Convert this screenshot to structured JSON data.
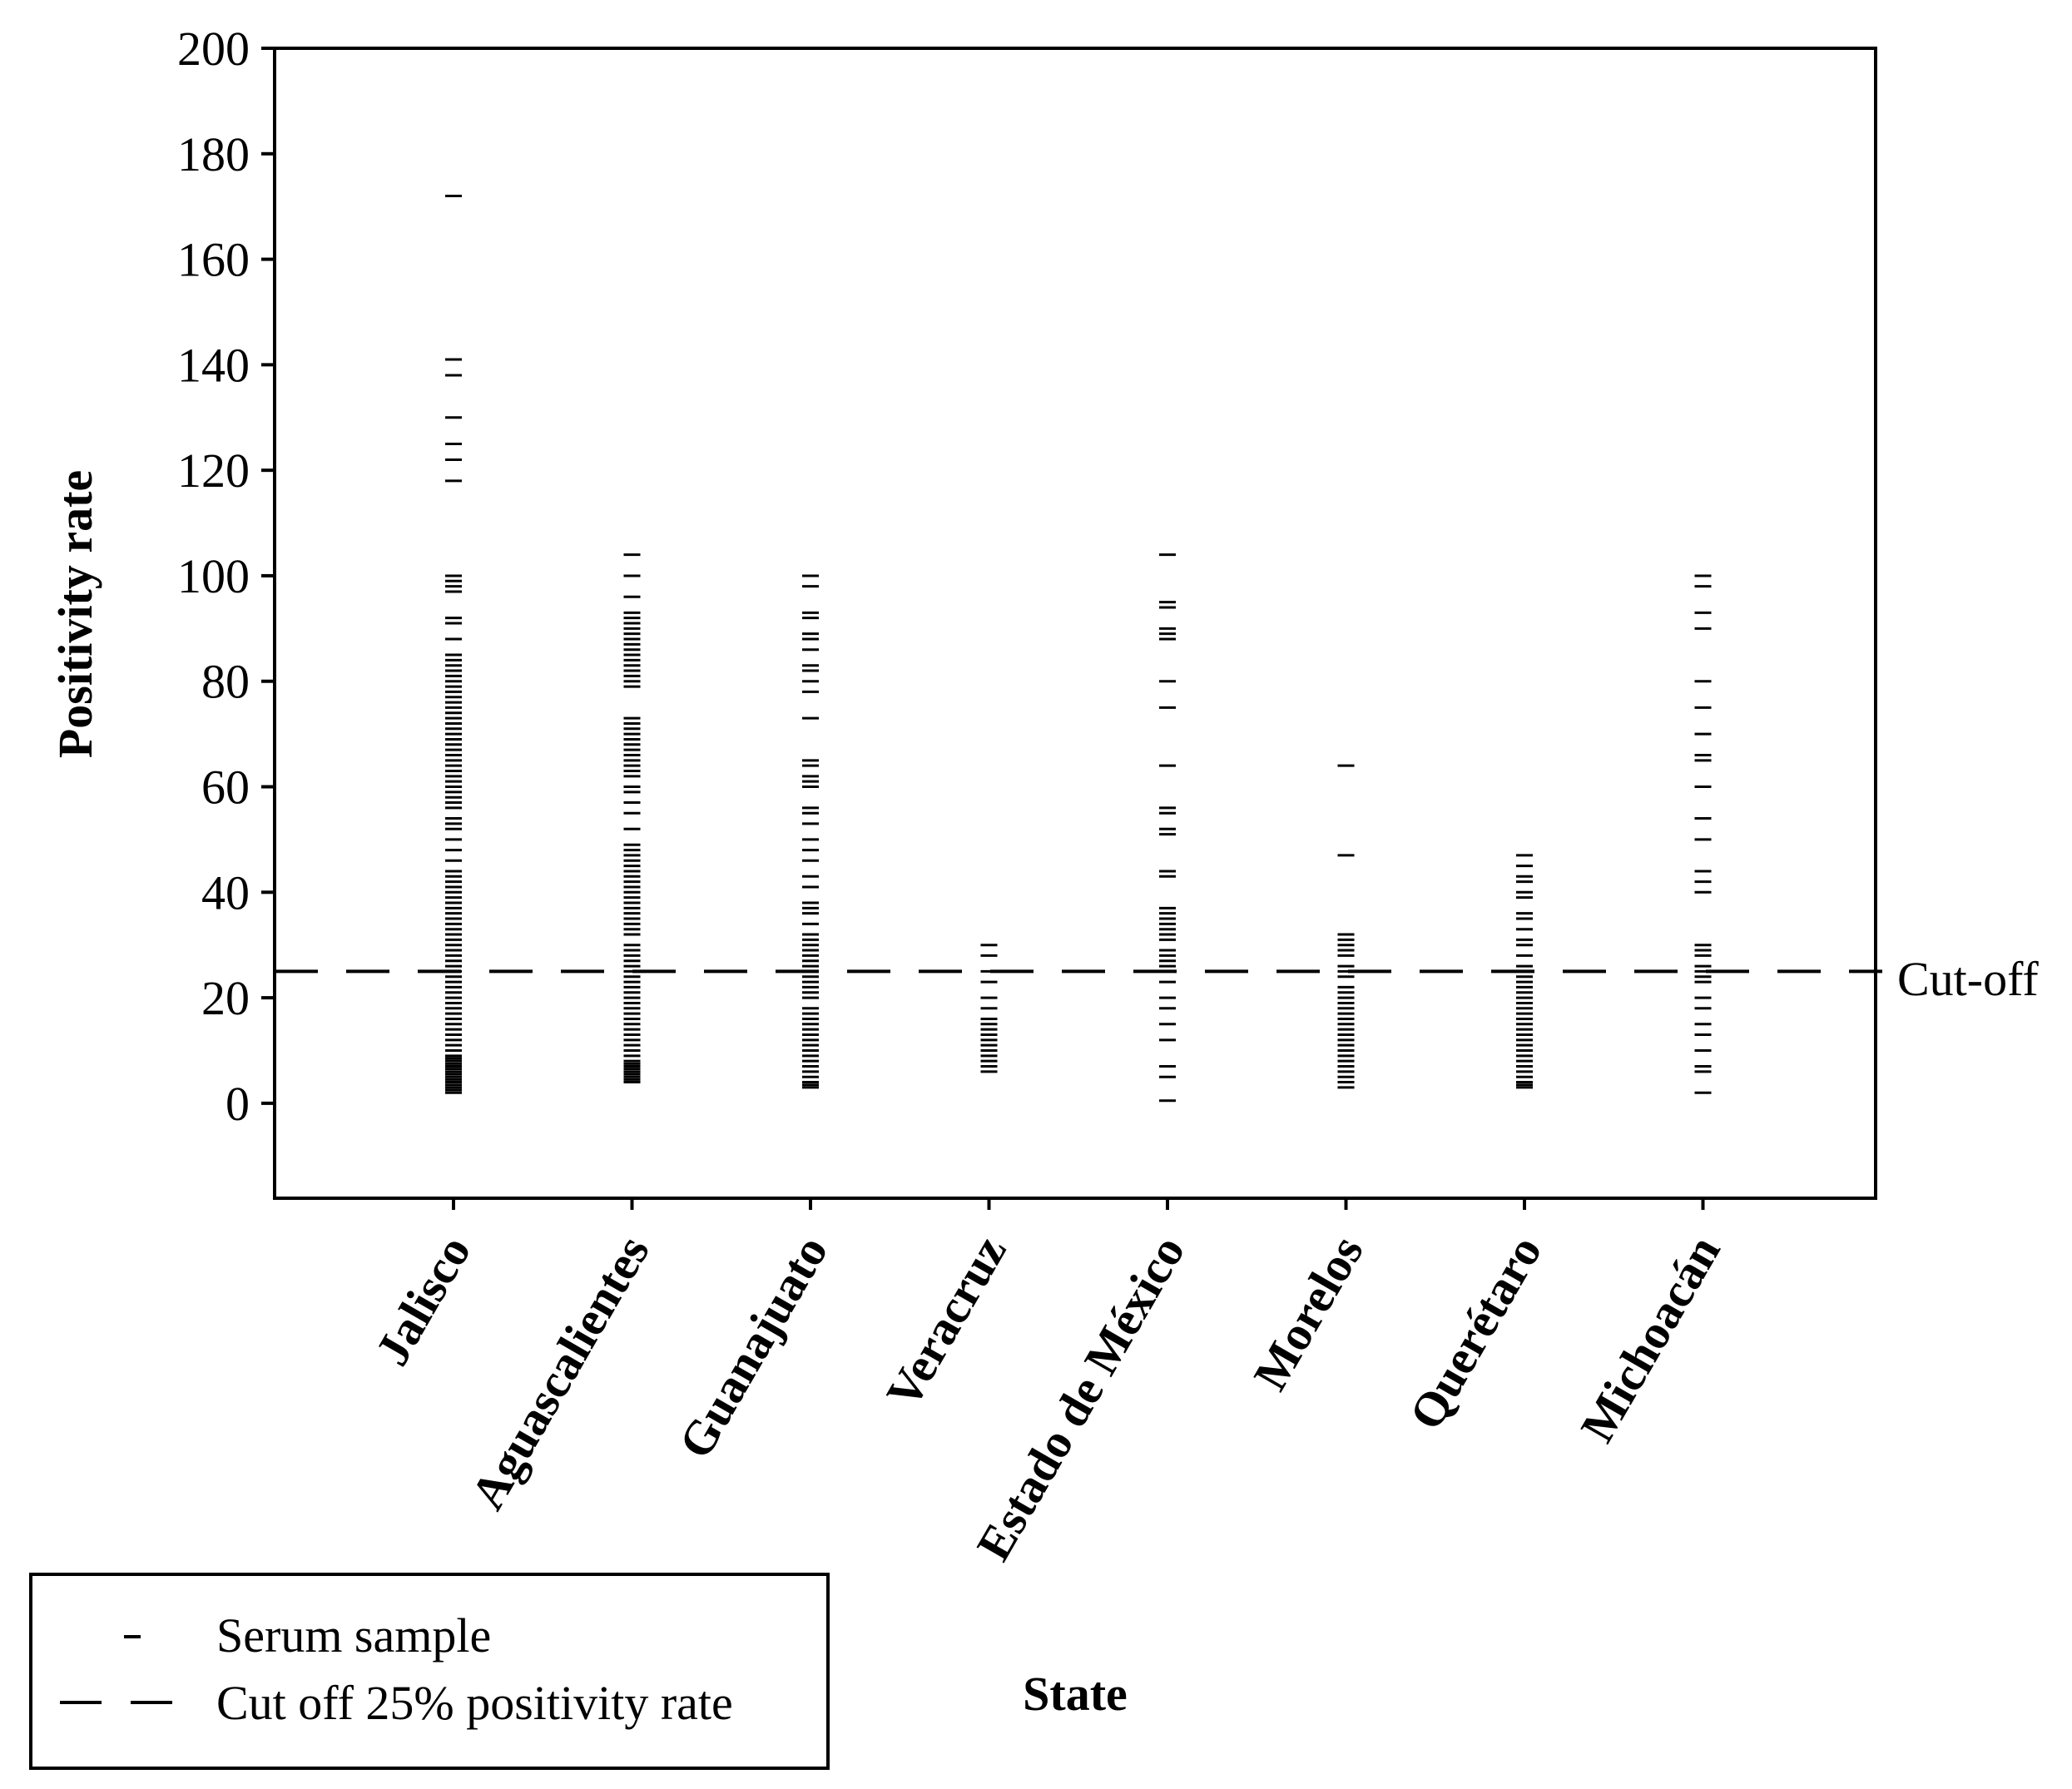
{
  "chart_data": {
    "type": "scatter",
    "title": "",
    "xlabel": "State",
    "ylabel": "Positivity rate",
    "ylim": [
      -18,
      200
    ],
    "yticks": [
      0,
      20,
      40,
      60,
      80,
      100,
      120,
      140,
      160,
      180,
      200
    ],
    "categories": [
      "Jalisco",
      "Aguascalientes",
      "Guanajuato",
      "Veracruz",
      "Estado de México",
      "Morelos",
      "Querétaro",
      "Michoacán"
    ],
    "cutoff": {
      "value": 25,
      "label": "Cut-off"
    },
    "legend": {
      "position": "bottom-left",
      "items": [
        {
          "symbol": "tick",
          "label": "Serum sample"
        },
        {
          "symbol": "dashed-line",
          "label": "Cut off 25% positivity rate"
        }
      ]
    },
    "series": [
      {
        "name": "Jalisco",
        "values": [
          2,
          2.5,
          3,
          3.5,
          4,
          4.5,
          5,
          5.5,
          6,
          6.5,
          7,
          7.5,
          8,
          8.5,
          9,
          10,
          11,
          12,
          13,
          14,
          15,
          16,
          17,
          18,
          19,
          20,
          21,
          22,
          23,
          24,
          25,
          26,
          27,
          28,
          29,
          30,
          31,
          32,
          33,
          34,
          35,
          36,
          37,
          38,
          39,
          40,
          41,
          42,
          43,
          44,
          46,
          48,
          50,
          52,
          53,
          54,
          56,
          57,
          58,
          59,
          60,
          61,
          62,
          63,
          64,
          65,
          66,
          67,
          68,
          69,
          70,
          71,
          72,
          73,
          74,
          75,
          76,
          77,
          78,
          79,
          80,
          81,
          82,
          83,
          84,
          85,
          88,
          91,
          92,
          97,
          98,
          99,
          100,
          118,
          122,
          125,
          130,
          138,
          141,
          172
        ]
      },
      {
        "name": "Aguascalientes",
        "values": [
          4,
          4.5,
          5,
          5.5,
          6,
          6.5,
          7,
          7.5,
          8,
          9,
          10,
          11,
          12,
          13,
          14,
          15,
          16,
          17,
          18,
          19,
          20,
          21,
          22,
          23,
          24,
          25,
          26,
          27,
          28,
          29,
          30,
          32,
          33,
          34,
          35,
          36,
          37,
          38,
          39,
          40,
          41,
          42,
          43,
          44,
          45,
          46,
          47,
          48,
          49,
          52,
          55,
          57,
          59,
          60,
          62,
          63,
          64,
          65,
          66,
          67,
          68,
          69,
          70,
          71,
          72,
          73,
          79,
          80,
          81,
          82,
          83,
          84,
          85,
          86,
          87,
          88,
          89,
          90,
          91,
          92,
          93,
          96,
          100,
          104
        ]
      },
      {
        "name": "Guanajuato",
        "values": [
          3,
          3.5,
          4,
          5,
          6,
          7,
          8,
          9,
          10,
          11,
          12,
          13,
          14,
          15,
          16,
          17,
          18,
          20,
          21,
          22,
          23,
          24,
          25,
          26,
          27,
          28,
          29,
          30,
          31,
          32,
          34,
          36,
          37,
          38,
          41,
          43,
          46,
          48,
          50,
          53,
          55,
          56,
          60,
          61,
          62,
          64,
          65,
          73,
          78,
          80,
          82,
          83,
          86,
          88,
          89,
          92,
          93,
          98,
          100
        ]
      },
      {
        "name": "Veracruz",
        "values": [
          6,
          7,
          8,
          9,
          10,
          11,
          12,
          13,
          14,
          15,
          16,
          18,
          20,
          23,
          25,
          28,
          30
        ]
      },
      {
        "name": "Estado de México",
        "values": [
          0.5,
          5,
          7,
          12,
          15,
          18,
          20,
          23,
          25,
          26,
          27,
          28,
          29,
          31,
          32,
          33,
          34,
          35,
          36,
          37,
          43,
          44,
          51,
          52,
          55,
          56,
          64,
          75,
          80,
          88,
          89,
          90,
          94,
          95,
          104
        ]
      },
      {
        "name": "Morelos",
        "values": [
          3,
          4,
          5,
          6,
          7,
          8,
          9,
          10,
          11,
          12,
          13,
          14,
          15,
          16,
          17,
          18,
          19,
          20,
          21,
          22,
          24,
          25,
          26,
          28,
          29,
          30,
          31,
          32,
          47,
          64
        ]
      },
      {
        "name": "Querétaro",
        "values": [
          3,
          3.5,
          4,
          5,
          6,
          7,
          8,
          9,
          10,
          11,
          12,
          13,
          14,
          15,
          16,
          17,
          18,
          19,
          20,
          21,
          22,
          23,
          24,
          25,
          26,
          28,
          30,
          31,
          33,
          35,
          36,
          39,
          40,
          42,
          43,
          45,
          47
        ]
      },
      {
        "name": "Michoacán",
        "values": [
          2,
          6,
          7,
          10,
          13,
          15,
          18,
          20,
          23,
          24,
          25,
          26,
          28,
          29,
          30,
          40,
          42,
          44,
          50,
          54,
          60,
          65,
          66,
          70,
          75,
          80,
          90,
          93,
          98,
          100
        ]
      }
    ]
  }
}
